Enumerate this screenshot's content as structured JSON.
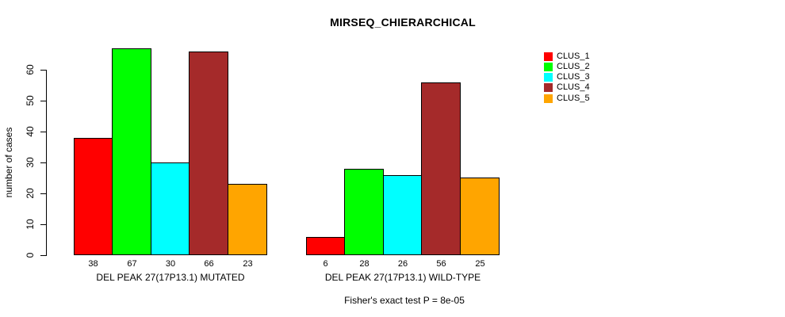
{
  "chart_data": {
    "type": "bar",
    "title": "MIRSEQ_CHIERARCHICAL",
    "ylabel": "number of cases",
    "xlabel": "",
    "ylim": [
      0,
      67
    ],
    "yticks": [
      0,
      10,
      20,
      30,
      40,
      50,
      60
    ],
    "grid": false,
    "legend_position": "right",
    "bar_value_labels_shown": true,
    "categories": [
      "DEL PEAK 27(17P13.1) MUTATED",
      "DEL PEAK 27(17P13.1) WILD-TYPE"
    ],
    "series": [
      {
        "name": "CLUS_1",
        "color": "#FF0000",
        "values": [
          38,
          6
        ]
      },
      {
        "name": "CLUS_2",
        "color": "#00FF00",
        "values": [
          67,
          28
        ]
      },
      {
        "name": "CLUS_3",
        "color": "#00FFFF",
        "values": [
          30,
          26
        ]
      },
      {
        "name": "CLUS_4",
        "color": "#A52A2A",
        "values": [
          66,
          56
        ]
      },
      {
        "name": "CLUS_5",
        "color": "#FFA500",
        "values": [
          23,
          25
        ]
      }
    ],
    "annotation": "Fisher's exact test P = 8e-05"
  },
  "colors": {
    "axis": "#000000",
    "text": "#000000",
    "background": "#FFFFFF"
  }
}
